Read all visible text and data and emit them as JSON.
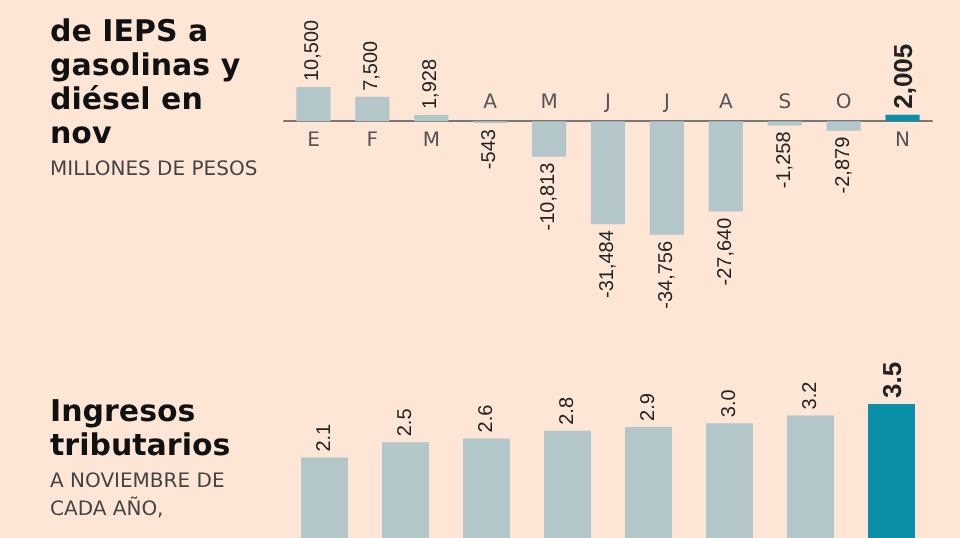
{
  "chart_data": [
    {
      "type": "bar",
      "title": "de IEPS a gasolinas y diésel en nov",
      "subtitle": "MILLONES DE PESOS",
      "categories": [
        "E",
        "F",
        "M",
        "A",
        "M",
        "J",
        "J",
        "A",
        "S",
        "O",
        "N"
      ],
      "values": [
        10500,
        7500,
        1928,
        -543,
        -10813,
        -31484,
        -34756,
        -27640,
        -1258,
        -2879,
        2005
      ],
      "value_labels": [
        "10,500",
        "7,500",
        "1,928",
        "-543",
        "-10,813",
        "-31,484",
        "-34,756",
        "-27,640",
        "-1,258",
        "-2,879",
        "2,005"
      ],
      "colors": [
        "#b3c6c9",
        "#b3c6c9",
        "#b3c6c9",
        "#b3c6c9",
        "#b3c6c9",
        "#b3c6c9",
        "#b3c6c9",
        "#b3c6c9",
        "#b3c6c9",
        "#b3c6c9",
        "#0a8fa9"
      ]
    },
    {
      "type": "bar",
      "title": "Ingresos tributarios",
      "subtitle": "A NOVIEMBRE DE CADA AÑO,",
      "categories": [
        null,
        null,
        null,
        null,
        null,
        null,
        null,
        null
      ],
      "values": [
        2.1,
        2.5,
        2.6,
        2.8,
        2.9,
        3.0,
        3.2,
        3.5
      ],
      "value_labels": [
        "2.1",
        "2.5",
        "2.6",
        "2.8",
        "2.9",
        "3.0",
        "3.2",
        "3.5"
      ],
      "colors": [
        "#b3c6c9",
        "#b3c6c9",
        "#b3c6c9",
        "#b3c6c9",
        "#b3c6c9",
        "#b3c6c9",
        "#b3c6c9",
        "#0a8fa9"
      ]
    }
  ]
}
